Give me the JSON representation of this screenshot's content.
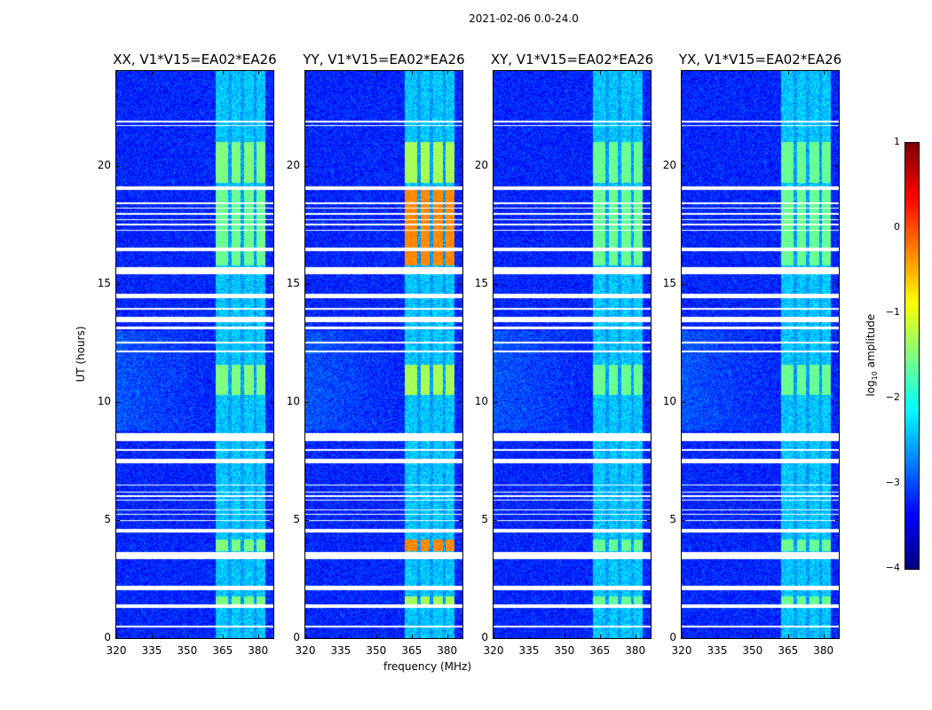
{
  "suptitle": "2021-02-06 0.0-24.0",
  "chart_data": {
    "type": "heatmap",
    "title": "2021-02-06 0.0-24.0",
    "xlabel": "frequency (MHz)",
    "ylabel": "UT (hours)",
    "xlim": [
      320,
      386.5
    ],
    "ylim": [
      0,
      24
    ],
    "xticks": [
      "320",
      "335",
      "350",
      "365",
      "380"
    ],
    "xtick_values": [
      320,
      335,
      350,
      365,
      380
    ],
    "yticks": [
      "0",
      "5",
      "10",
      "15",
      "20"
    ],
    "ytick_values": [
      0,
      5,
      10,
      15,
      20
    ],
    "panels": [
      {
        "title": "XX, V1*V15=EA02*EA26",
        "rfi_peak": -1.5
      },
      {
        "title": "YY, V1*V15=EA02*EA26",
        "rfi_peak": -0.3
      },
      {
        "title": "XY, V1*V15=EA02*EA26",
        "rfi_peak": -1.6
      },
      {
        "title": "YX, V1*V15=EA02*EA26",
        "rfi_peak": -1.6
      }
    ],
    "background_log10_amplitude": -3.2,
    "rfi_subbands_mhz": [
      [
        362,
        367
      ],
      [
        368.5,
        372.5
      ],
      [
        374,
        378
      ],
      [
        379,
        383
      ]
    ],
    "rfi_active_hours": [
      [
        19.3,
        21.0
      ],
      [
        15.8,
        19.0
      ],
      [
        10.3,
        11.6
      ],
      [
        3.7,
        4.2
      ],
      [
        1.3,
        1.8
      ]
    ],
    "flagged_hours": [
      [
        21.68,
        21.74
      ],
      [
        21.84,
        21.9
      ],
      [
        19.0,
        19.15
      ],
      [
        18.4,
        18.45
      ],
      [
        18.2,
        18.25
      ],
      [
        17.95,
        18.0
      ],
      [
        17.7,
        17.75
      ],
      [
        17.5,
        17.55
      ],
      [
        17.25,
        17.3
      ],
      [
        16.4,
        16.55
      ],
      [
        15.4,
        15.7
      ],
      [
        14.4,
        14.6
      ],
      [
        13.92,
        13.98
      ],
      [
        13.4,
        13.6
      ],
      [
        13.1,
        13.2
      ],
      [
        12.48,
        12.55
      ],
      [
        12.12,
        12.2
      ],
      [
        8.35,
        8.7
      ],
      [
        7.95,
        8.0
      ],
      [
        7.4,
        7.6
      ],
      [
        6.48,
        6.53
      ],
      [
        6.18,
        6.23
      ],
      [
        6.0,
        6.05
      ],
      [
        5.83,
        5.88
      ],
      [
        5.43,
        5.48
      ],
      [
        5.23,
        5.28
      ],
      [
        4.98,
        5.03
      ],
      [
        4.5,
        4.65
      ],
      [
        3.35,
        3.65
      ],
      [
        2.05,
        2.25
      ],
      [
        1.3,
        1.45
      ],
      [
        0.48,
        0.53
      ]
    ],
    "colorbar": {
      "label_prefix": "log",
      "label_sub": "10",
      "label_suffix": " amplitude",
      "range": [
        -4,
        1
      ],
      "ticks": [
        "1",
        "0",
        "−1",
        "−2",
        "−3",
        "−4"
      ],
      "tick_values": [
        1,
        0,
        -1,
        -2,
        -3,
        -4
      ],
      "colormap": "jet"
    }
  }
}
